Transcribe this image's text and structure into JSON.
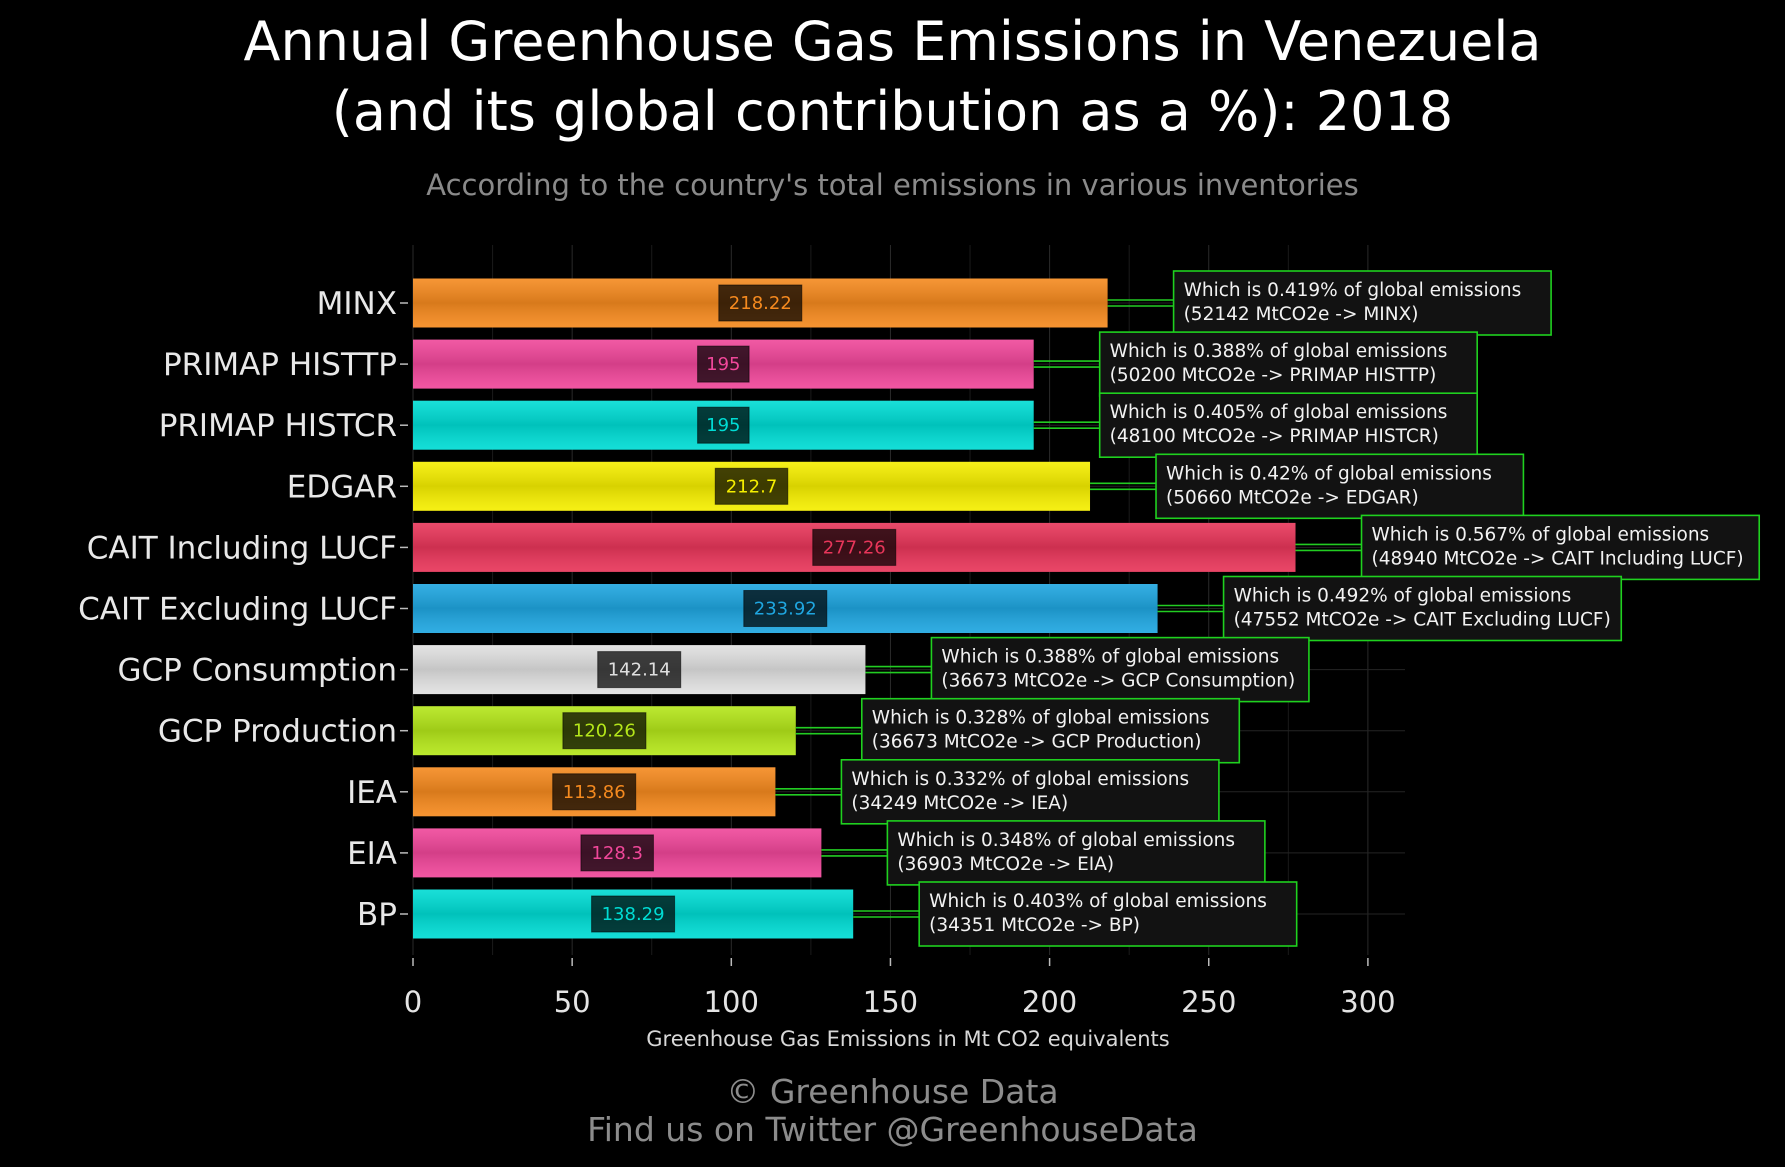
{
  "title_line1": "Annual Greenhouse Gas Emissions in Venezuela",
  "title_line2": "(and its global contribution as a %): 2018",
  "subtitle": "According to the country's total emissions in various inventories",
  "credit_line1": "© Greenhouse Data",
  "credit_line2": "Find us on Twitter @GreenhouseData",
  "chart_data": {
    "type": "bar",
    "orientation": "horizontal",
    "xlabel": "Greenhouse Gas Emissions in Mt CO2 equivalents",
    "xlim": [
      0,
      310
    ],
    "xticks": [
      0,
      50,
      100,
      150,
      200,
      250,
      300
    ],
    "grid": true,
    "categories": [
      "MINX",
      "PRIMAP HISTTP",
      "PRIMAP HISTCR",
      "EDGAR",
      "CAIT Including LUCF",
      "CAIT Excluding LUCF",
      "GCP Consumption",
      "GCP Production",
      "IEA",
      "EIA",
      "BP"
    ],
    "values": [
      218.22,
      195,
      195,
      212.7,
      277.26,
      233.92,
      142.14,
      120.26,
      113.86,
      128.3,
      138.29
    ],
    "value_labels": [
      "218.22",
      "195",
      "195",
      "212.7",
      "277.26",
      "233.92",
      "142.14",
      "120.26",
      "113.86",
      "128.3",
      "138.29"
    ],
    "bar_colors": [
      "#f58a1f",
      "#f0479a",
      "#00dcd4",
      "#f5ee00",
      "#e8365a",
      "#1fa6e0",
      "#e0e0e0",
      "#b4e61a",
      "#f58a1f",
      "#f0479a",
      "#00dcd4"
    ],
    "annotations": [
      {
        "line1": "Which is 0.419% of global emissions",
        "line2": "(52142 MtCO2e -> MINX)"
      },
      {
        "line1": "Which is 0.388% of global emissions",
        "line2": "(50200 MtCO2e -> PRIMAP HISTTP)"
      },
      {
        "line1": "Which is 0.405% of global emissions",
        "line2": "(48100 MtCO2e -> PRIMAP HISTCR)"
      },
      {
        "line1": "Which is 0.42% of global emissions",
        "line2": "(50660 MtCO2e -> EDGAR)"
      },
      {
        "line1": "Which is 0.567% of global emissions",
        "line2": "(48940 MtCO2e -> CAIT Including LUCF)"
      },
      {
        "line1": "Which is 0.492% of global emissions",
        "line2": "(47552 MtCO2e -> CAIT Excluding LUCF)"
      },
      {
        "line1": "Which is 0.388% of global emissions",
        "line2": "(36673 MtCO2e -> GCP Consumption)"
      },
      {
        "line1": "Which is 0.328% of global emissions",
        "line2": "(36673 MtCO2e -> GCP Production)"
      },
      {
        "line1": "Which is 0.332% of global emissions",
        "line2": "(34249 MtCO2e -> IEA)"
      },
      {
        "line1": "Which is 0.348% of global emissions",
        "line2": "(36903 MtCO2e -> EIA)"
      },
      {
        "line1": "Which is 0.403% of global emissions",
        "line2": "(34351 MtCO2e -> BP)"
      }
    ],
    "annotation_border_color": "#1fd11f",
    "connector_color": "#22cc22"
  }
}
